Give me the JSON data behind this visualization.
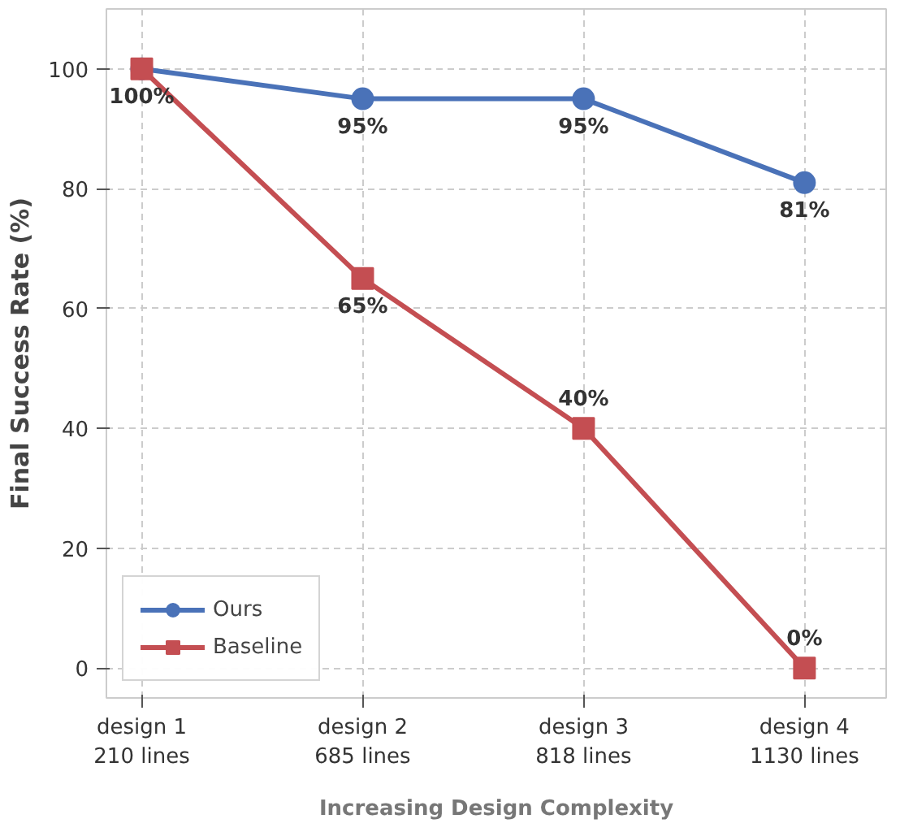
{
  "chart_data": {
    "type": "line",
    "categories": [
      "design 1\n210 lines",
      "design 2\n685 lines",
      "design 3\n818 lines",
      "design 4\n1130 lines"
    ],
    "series": [
      {
        "name": "Ours",
        "color": "#4a72b8",
        "marker": "circle",
        "values": [
          100,
          95,
          95,
          81
        ],
        "value_labels": [
          null,
          "95%",
          "95%",
          "81%"
        ]
      },
      {
        "name": "Baseline",
        "color": "#c44e52",
        "marker": "square",
        "values": [
          100,
          65,
          40,
          0
        ],
        "value_labels": [
          "100%",
          "65%",
          "40%",
          "0%"
        ]
      }
    ],
    "xlabel": "Increasing Design Complexity",
    "ylabel": "Final Success Rate (%)",
    "ylim": [
      -5,
      110
    ],
    "yticks": [
      0,
      20,
      40,
      60,
      80,
      100
    ],
    "grid": true,
    "legend": "bottom left",
    "line_style": "solid"
  }
}
